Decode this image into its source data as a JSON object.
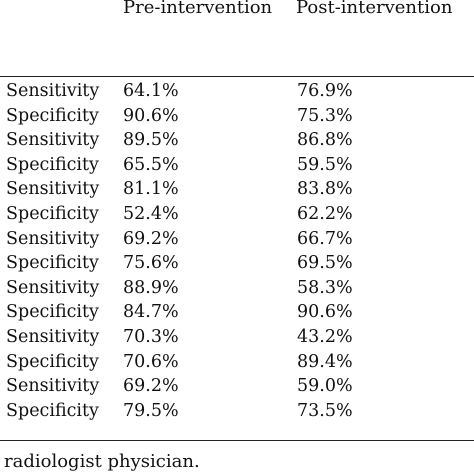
{
  "table": {
    "headers": {
      "pre": "Pre-intervention",
      "post": "Post-intervention"
    },
    "rows": [
      {
        "metric": "Sensitivity",
        "pre": "64.1%",
        "post": "76.9%"
      },
      {
        "metric": "Specificity",
        "pre": "90.6%",
        "post": "75.3%"
      },
      {
        "metric": "Sensitivity",
        "pre": "89.5%",
        "post": "86.8%"
      },
      {
        "metric": "Specificity",
        "pre": "65.5%",
        "post": "59.5%"
      },
      {
        "metric": "Sensitivity",
        "pre": "81.1%",
        "post": "83.8%"
      },
      {
        "metric": "Specificity",
        "pre": "52.4%",
        "post": "62.2%"
      },
      {
        "metric": "Sensitivity",
        "pre": "69.2%",
        "post": "66.7%"
      },
      {
        "metric": "Specificity",
        "pre": "75.6%",
        "post": "69.5%"
      },
      {
        "metric": "Sensitivity",
        "pre": "88.9%",
        "post": "58.3%"
      },
      {
        "metric": "Specificity",
        "pre": "84.7%",
        "post": "90.6%"
      },
      {
        "metric": "Sensitivity",
        "pre": "70.3%",
        "post": "43.2%"
      },
      {
        "metric": "Specificity",
        "pre": "70.6%",
        "post": "89.4%"
      },
      {
        "metric": "Sensitivity",
        "pre": "69.2%",
        "post": "59.0%"
      },
      {
        "metric": "Specificity",
        "pre": "79.5%",
        "post": "73.5%"
      }
    ]
  },
  "footnote": "radiologist physician."
}
